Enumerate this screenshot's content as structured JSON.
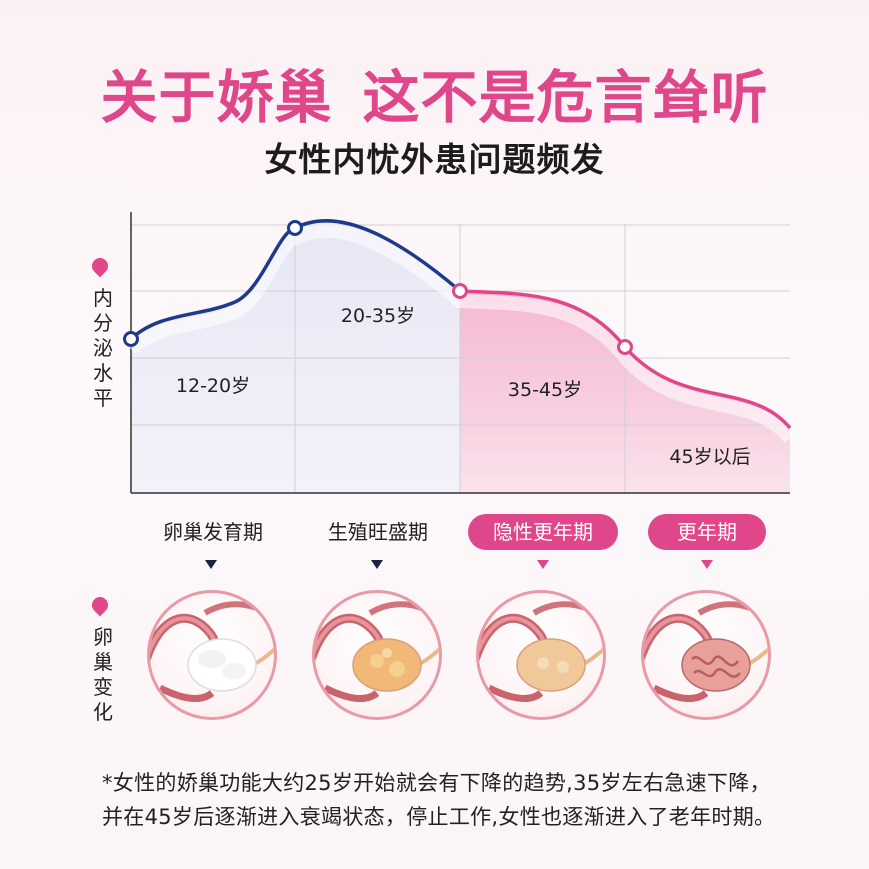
{
  "header": {
    "title_part1": "关于娇巢",
    "title_part2": "这不是危言耸听",
    "subtitle": "女性内忧外患问题频发"
  },
  "side_labels": {
    "chart_axis": "内分泌水平",
    "ovary_row": "卵巢变化"
  },
  "chart_data": {
    "type": "line",
    "ylabel": "内分泌水平",
    "age_ranges": [
      "12-20岁",
      "20-35岁",
      "35-45岁",
      "45岁以后"
    ],
    "series": [
      {
        "color_before": "#1e3a8a",
        "color_after": "#e0478b"
      }
    ],
    "colors": {
      "blue": "#1e3a8a",
      "pink": "#e0478b",
      "grid": "#cfcfd6"
    },
    "grid": true
  },
  "stages": [
    {
      "label": "卵巢发育期",
      "highlight": false
    },
    {
      "label": "生殖旺盛期",
      "highlight": false
    },
    {
      "label": "隐性更年期",
      "highlight": true
    },
    {
      "label": "更年期",
      "highlight": true
    }
  ],
  "ovary_images": [
    {
      "icon": "ovary-developing-icon",
      "fill": "#ffffff"
    },
    {
      "icon": "ovary-fertile-icon",
      "fill": "#f2b877"
    },
    {
      "icon": "ovary-latent-menopause-icon",
      "fill": "#f0c89a"
    },
    {
      "icon": "ovary-menopause-icon",
      "fill": "#e79a96"
    }
  ],
  "note": "*女性的娇巢功能大约25岁开始就会有下降的趋势,35岁左右急速下降，并在45岁后逐渐进入衰竭状态，停止工作,女性也逐渐进入了老年时期。"
}
